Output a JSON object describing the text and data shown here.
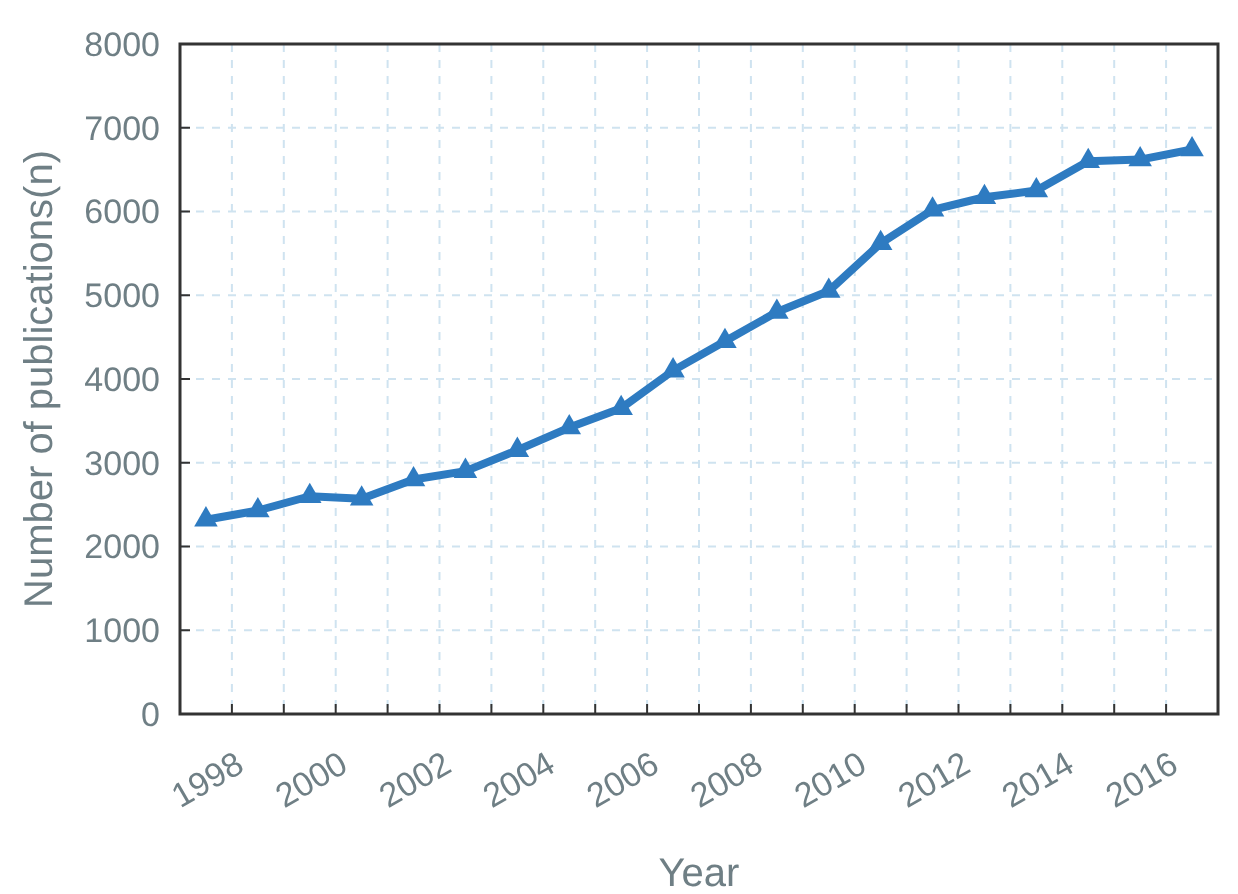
{
  "chart_data": {
    "type": "line",
    "xlabel": "Year",
    "ylabel": "Number of publications(n)",
    "categories": [
      "1998",
      null,
      "2000",
      null,
      "2002",
      null,
      "2004",
      null,
      "2006",
      null,
      "2008",
      null,
      "2010",
      null,
      "2012",
      null,
      "2014",
      null,
      "2016",
      null
    ],
    "series": [
      {
        "color": "#2e7bc1",
        "values": [
          2320,
          2430,
          2600,
          2570,
          2800,
          2900,
          3150,
          3420,
          3650,
          4100,
          4450,
          4800,
          5050,
          5620,
          6020,
          6170,
          6250,
          6600,
          6620,
          6740
        ]
      }
    ],
    "ylim": [
      0,
      8000
    ],
    "yticks": [
      0,
      1000,
      2000,
      3000,
      4000,
      5000,
      6000,
      7000,
      8000
    ],
    "grid": true,
    "marker": "triangle",
    "line_style": "solid"
  }
}
